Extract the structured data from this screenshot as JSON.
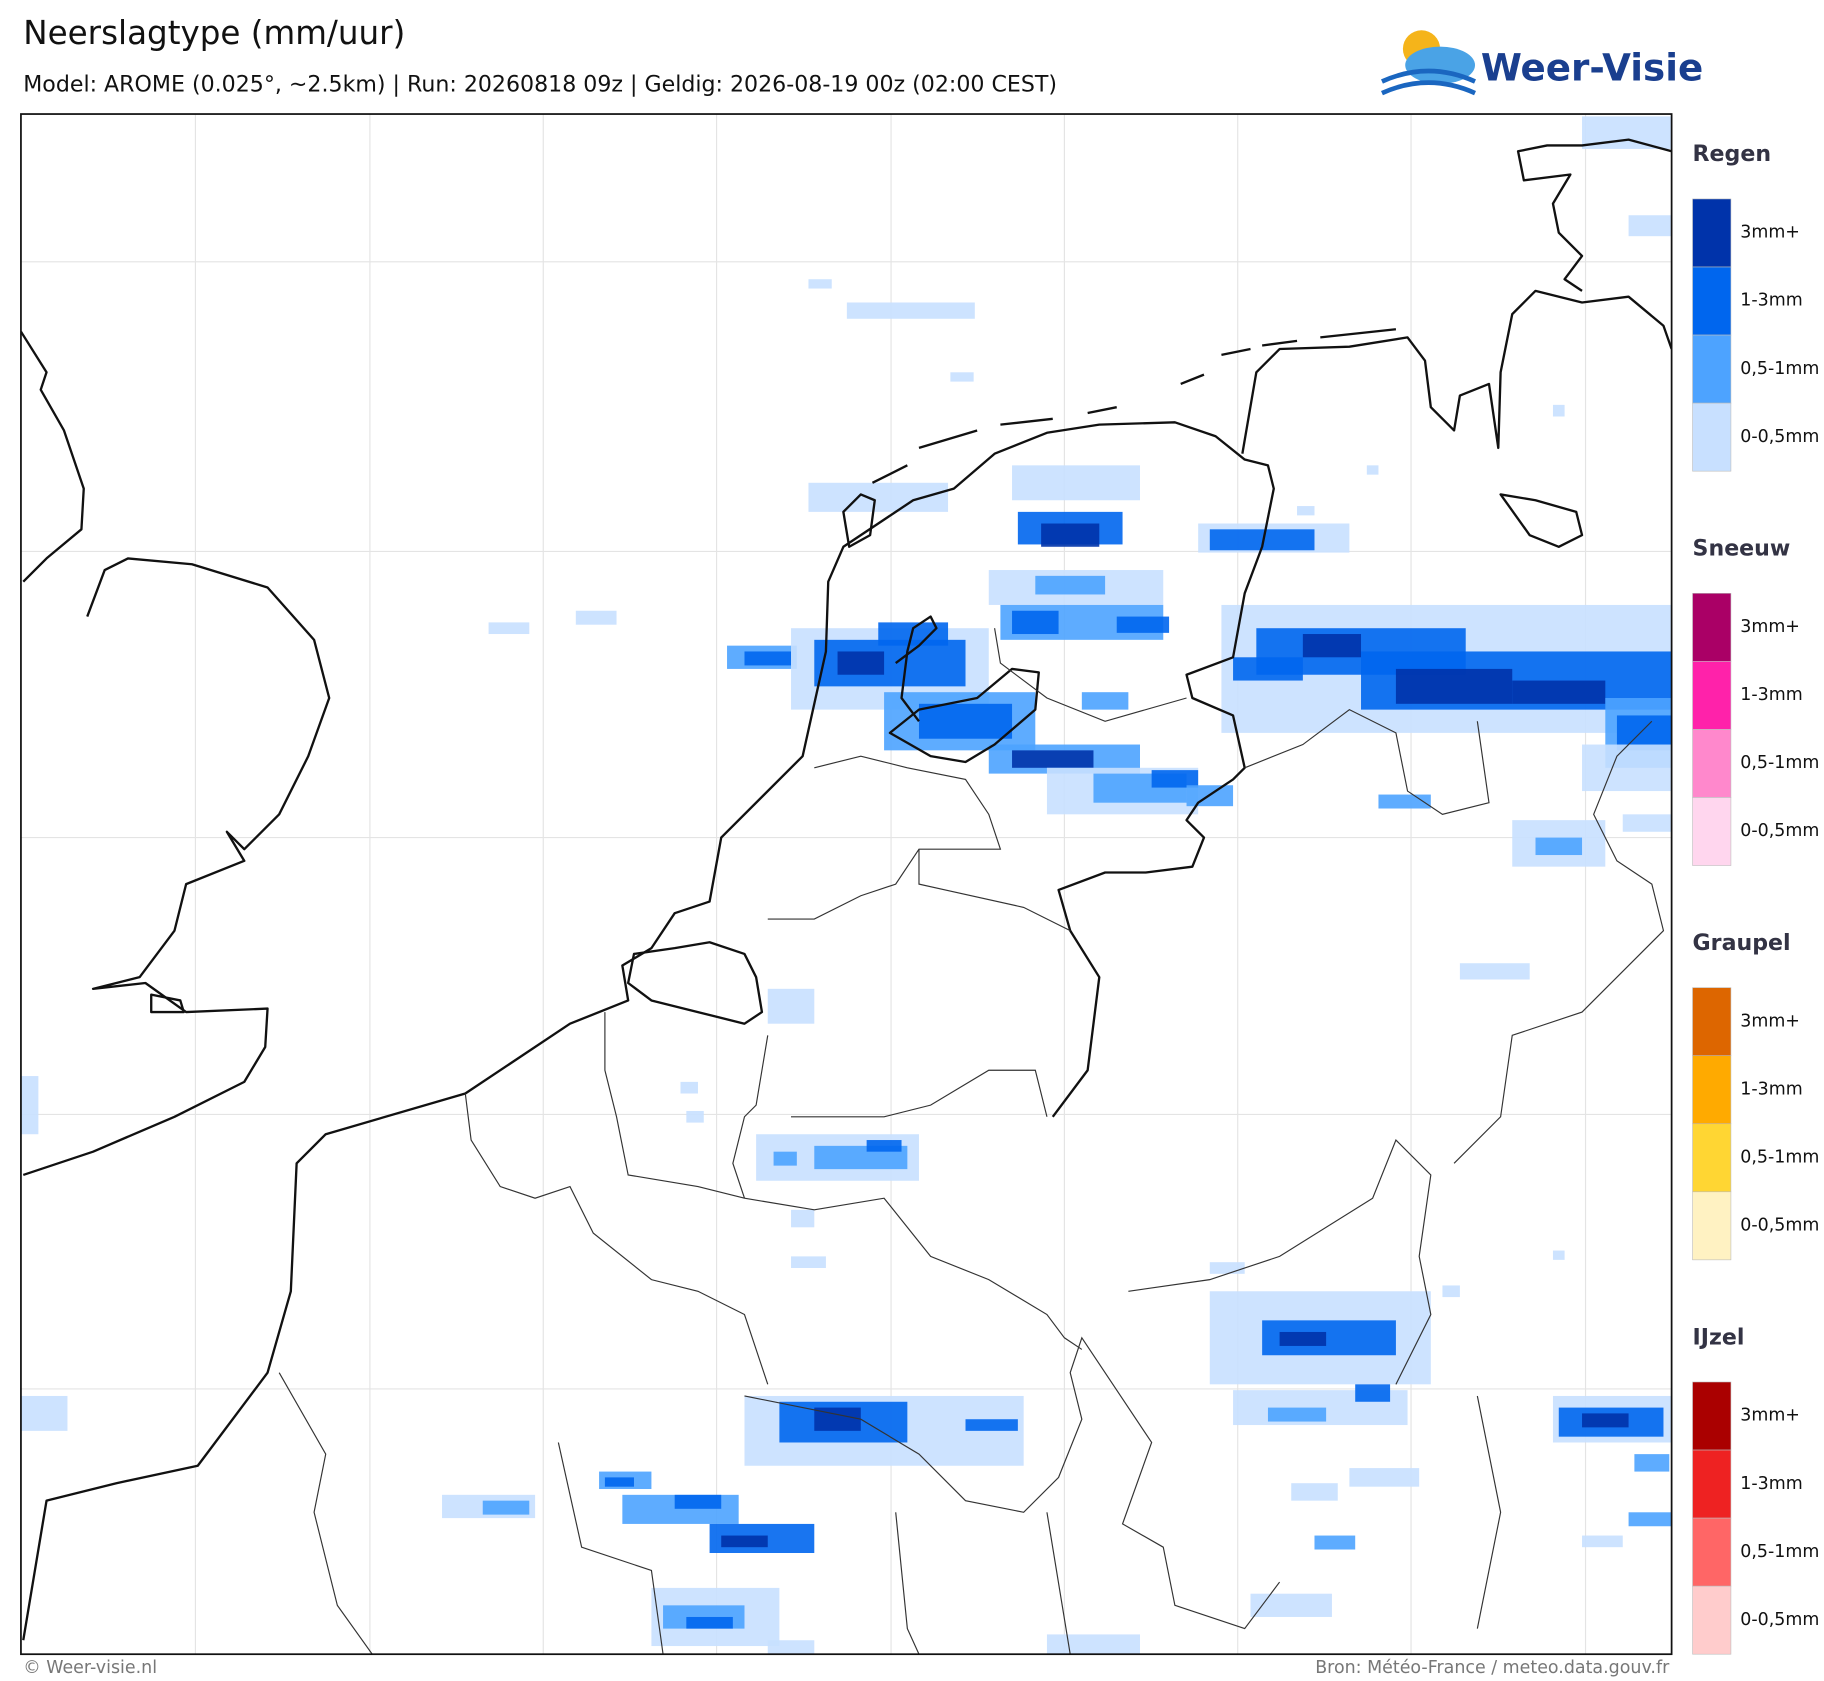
{
  "header": {
    "title": "Neerslagtype (mm/uur)",
    "subtitle": "Model: AROME (0.025°, ~2.5km)  |  Run: 20260818 09z  |  Geldig: 2026-08-19 00z (02:00 CEST)",
    "logo": "Weer-Visie"
  },
  "legend": [
    {
      "title": "Regen",
      "items": [
        {
          "label": "3mm+",
          "color": "#0033aa"
        },
        {
          "label": "1-3mm",
          "color": "#0066ee"
        },
        {
          "label": "0,5-1mm",
          "color": "#4da3ff"
        },
        {
          "label": "0-0,5mm",
          "color": "#c8e0ff"
        }
      ]
    },
    {
      "title": "Sneeuw",
      "items": [
        {
          "label": "3mm+",
          "color": "#aa0066"
        },
        {
          "label": "1-3mm",
          "color": "#ff22aa"
        },
        {
          "label": "0,5-1mm",
          "color": "#ff88cc"
        },
        {
          "label": "0-0,5mm",
          "color": "#ffd6ee"
        }
      ]
    },
    {
      "title": "Graupel",
      "items": [
        {
          "label": "3mm+",
          "color": "#dd6600"
        },
        {
          "label": "1-3mm",
          "color": "#ffaa00"
        },
        {
          "label": "0,5-1mm",
          "color": "#ffd633"
        },
        {
          "label": "0-0,5mm",
          "color": "#fff2c2"
        }
      ]
    },
    {
      "title": "IJzel",
      "items": [
        {
          "label": "3mm+",
          "color": "#aa0000"
        },
        {
          "label": "1-3mm",
          "color": "#ee2222"
        },
        {
          "label": "0,5-1mm",
          "color": "#ff6666"
        },
        {
          "label": "0-0,5mm",
          "color": "#ffcccc"
        }
      ]
    }
  ],
  "footer": {
    "left": "© Weer-visie.nl",
    "right": "Bron: Météo-France / meteo.data.gouv.fr"
  }
}
